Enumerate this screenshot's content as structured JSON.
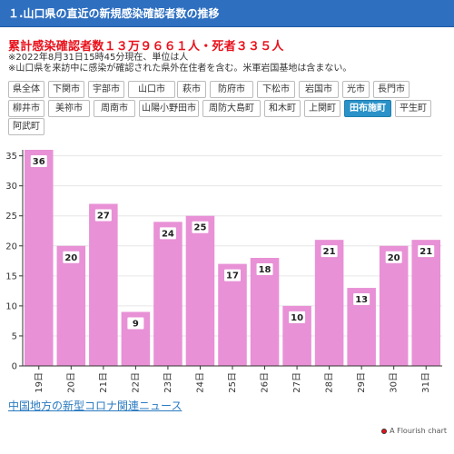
{
  "header": {
    "title": "１.山口県の直近の新規感染確認者数の推移"
  },
  "summary": {
    "text": "累計感染確認者数１３万９６６１人・死者３３５人"
  },
  "notes": [
    "※2022年8月31日15時45分現在、単位は人",
    "※山口県を来訪中に感染が確認された県外在住者を含む。米軍岩国基地は含まない。"
  ],
  "buttons": [
    {
      "label": "県全体",
      "active": false
    },
    {
      "label": "下関市",
      "active": false
    },
    {
      "label": "宇部市",
      "active": false
    },
    {
      "label": "山口市",
      "active": false
    },
    {
      "label": "萩市",
      "active": false
    },
    {
      "label": "防府市",
      "active": false
    },
    {
      "label": "下松市",
      "active": false
    },
    {
      "label": "岩国市",
      "active": false
    },
    {
      "label": "光市",
      "active": false
    },
    {
      "label": "長門市",
      "active": false
    },
    {
      "label": "柳井市",
      "active": false
    },
    {
      "label": "美祢市",
      "active": false
    },
    {
      "label": "周南市",
      "active": false
    },
    {
      "label": "山陽小野田市",
      "active": false
    },
    {
      "label": "周防大島町",
      "active": false
    },
    {
      "label": "和木町",
      "active": false
    },
    {
      "label": "上関町",
      "active": false
    },
    {
      "label": "田布施町",
      "active": true
    },
    {
      "label": "平生町",
      "active": false
    },
    {
      "label": "阿武町",
      "active": false
    }
  ],
  "chart_data": {
    "type": "bar",
    "categories": [
      "19日",
      "20日",
      "21日",
      "22日",
      "23日",
      "24日",
      "25日",
      "26日",
      "27日",
      "28日",
      "29日",
      "30日",
      "31日"
    ],
    "values": [
      36,
      20,
      27,
      9,
      24,
      25,
      17,
      18,
      10,
      21,
      13,
      20,
      21
    ],
    "ylim": [
      0,
      36
    ],
    "yticks": [
      0,
      5,
      10,
      15,
      20,
      25,
      30,
      35
    ],
    "bar_color": "#e891d6",
    "grid": true,
    "data_labels": true
  },
  "link": {
    "text": "中国地方の新型コロナ関連ニュース"
  },
  "credit": {
    "text": "A Flourish chart"
  }
}
